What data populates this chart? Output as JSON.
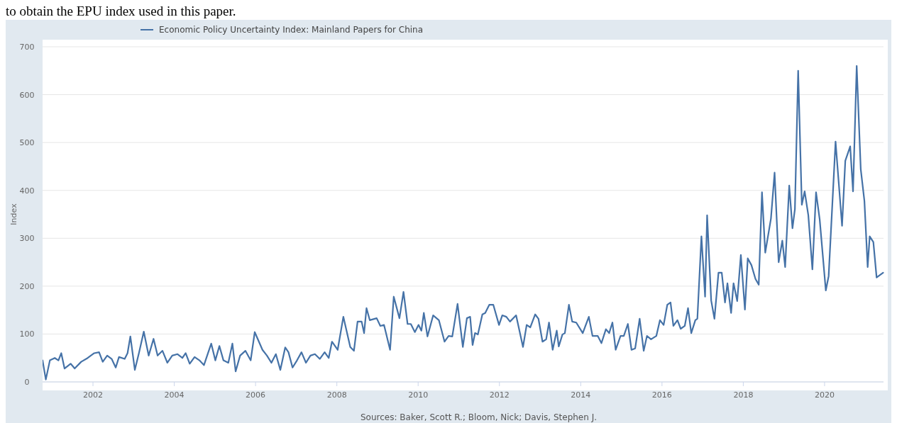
{
  "chart_data": {
    "type": "line",
    "ylabel": "Index",
    "legend": "top left",
    "grid": "y",
    "marker": "none",
    "line_style": "solid",
    "xlim": [
      2000.76,
      2021.45
    ],
    "xticks": [
      2002,
      2004,
      2006,
      2008,
      2010,
      2012,
      2014,
      2016,
      2018,
      2020
    ],
    "ylim": [
      0,
      700
    ],
    "yticks": [
      0,
      100,
      200,
      300,
      400,
      500,
      600,
      700
    ],
    "annotations": [
      "to obtain the EPU index used in this paper.",
      "Sources: Baker, Scott R.; Bloom, Nick; Davis, Stephen J."
    ],
    "series": [
      {
        "name": "Economic Policy Uncertainty Index: Mainland Papers for China",
        "color": "#4572a7",
        "x": [
          2000.76,
          2000.84,
          2000.94,
          2001.06,
          2001.15,
          2001.22,
          2001.3,
          2001.45,
          2001.55,
          2001.71,
          2001.87,
          2002.03,
          2002.15,
          2002.24,
          2002.35,
          2002.46,
          2002.56,
          2002.64,
          2002.78,
          2002.85,
          2002.92,
          2003.03,
          2003.13,
          2003.25,
          2003.37,
          2003.49,
          2003.59,
          2003.71,
          2003.83,
          2003.95,
          2004.08,
          2004.2,
          2004.28,
          2004.38,
          2004.5,
          2004.62,
          2004.73,
          2004.83,
          2004.91,
          2005.01,
          2005.11,
          2005.21,
          2005.33,
          2005.43,
          2005.51,
          2005.62,
          2005.75,
          2005.88,
          2005.98,
          2006.17,
          2006.28,
          2006.39,
          2006.5,
          2006.61,
          2006.73,
          2006.81,
          2006.91,
          2007.02,
          2007.13,
          2007.24,
          2007.35,
          2007.46,
          2007.58,
          2007.7,
          2007.8,
          2007.88,
          2008.02,
          2008.16,
          2008.33,
          2008.42,
          2008.51,
          2008.61,
          2008.67,
          2008.73,
          2008.81,
          2008.98,
          2009.07,
          2009.16,
          2009.31,
          2009.4,
          2009.54,
          2009.64,
          2009.74,
          2009.82,
          2009.92,
          2010.01,
          2010.08,
          2010.14,
          2010.23,
          2010.37,
          2010.51,
          2010.65,
          2010.75,
          2010.84,
          2010.97,
          2011.1,
          2011.2,
          2011.28,
          2011.34,
          2011.4,
          2011.47,
          2011.58,
          2011.65,
          2011.75,
          2011.85,
          2011.99,
          2012.07,
          2012.17,
          2012.26,
          2012.41,
          2012.58,
          2012.67,
          2012.76,
          2012.88,
          2012.96,
          2013.06,
          2013.15,
          2013.22,
          2013.31,
          2013.41,
          2013.46,
          2013.55,
          2013.61,
          2013.71,
          2013.79,
          2013.89,
          2014.05,
          2014.2,
          2014.29,
          2014.42,
          2014.51,
          2014.62,
          2014.7,
          2014.78,
          2014.86,
          2014.98,
          2015.06,
          2015.16,
          2015.25,
          2015.34,
          2015.45,
          2015.55,
          2015.63,
          2015.73,
          2015.86,
          2015.95,
          2016.04,
          2016.13,
          2016.21,
          2016.28,
          2016.38,
          2016.46,
          2016.56,
          2016.64,
          2016.72,
          2016.82,
          2016.87,
          2016.97,
          2017.06,
          2017.11,
          2017.21,
          2017.29,
          2017.39,
          2017.47,
          2017.55,
          2017.61,
          2017.7,
          2017.76,
          2017.85,
          2017.94,
          2018.04,
          2018.11,
          2018.2,
          2018.3,
          2018.38,
          2018.46,
          2018.54,
          2018.68,
          2018.77,
          2018.87,
          2018.96,
          2019.03,
          2019.13,
          2019.21,
          2019.27,
          2019.35,
          2019.44,
          2019.51,
          2019.6,
          2019.7,
          2019.79,
          2019.88,
          2020.03,
          2020.1,
          2020.27,
          2020.43,
          2020.51,
          2020.63,
          2020.7,
          2020.79,
          2020.89,
          2020.98,
          2021.06,
          2021.11,
          2021.2,
          2021.28,
          2021.44
        ],
        "values": [
          45,
          5,
          45,
          50,
          45,
          60,
          28,
          38,
          28,
          42,
          50,
          60,
          62,
          42,
          55,
          48,
          30,
          52,
          48,
          60,
          95,
          25,
          60,
          105,
          55,
          90,
          55,
          65,
          40,
          55,
          58,
          50,
          60,
          38,
          52,
          45,
          35,
          60,
          80,
          45,
          75,
          45,
          40,
          80,
          22,
          55,
          65,
          45,
          104,
          67,
          55,
          40,
          58,
          25,
          72,
          62,
          30,
          45,
          62,
          40,
          55,
          58,
          48,
          62,
          50,
          84,
          67,
          136,
          73,
          65,
          126,
          126,
          102,
          154,
          129,
          133,
          117,
          119,
          67,
          178,
          133,
          188,
          121,
          121,
          104,
          119,
          107,
          144,
          95,
          139,
          129,
          84,
          96,
          95,
          163,
          73,
          133,
          136,
          77,
          102,
          99,
          141,
          144,
          161,
          161,
          119,
          139,
          136,
          126,
          139,
          73,
          119,
          114,
          141,
          132,
          84,
          89,
          124,
          67,
          107,
          74,
          99,
          102,
          161,
          126,
          124,
          102,
          136,
          96,
          96,
          81,
          110,
          102,
          124,
          67,
          96,
          96,
          121,
          67,
          70,
          132,
          65,
          96,
          89,
          96,
          129,
          119,
          161,
          166,
          117,
          129,
          111,
          117,
          154,
          102,
          129,
          132,
          304,
          178,
          348,
          170,
          132,
          228,
          228,
          166,
          206,
          144,
          206,
          169,
          265,
          151,
          258,
          244,
          215,
          203,
          396,
          270,
          341,
          437,
          250,
          295,
          240,
          410,
          321,
          361,
          650,
          370,
          398,
          348,
          235,
          396,
          339,
          191,
          221,
          502,
          326,
          462,
          492,
          398,
          660,
          444,
          378,
          240,
          304,
          292,
          218,
          228
        ]
      }
    ]
  }
}
